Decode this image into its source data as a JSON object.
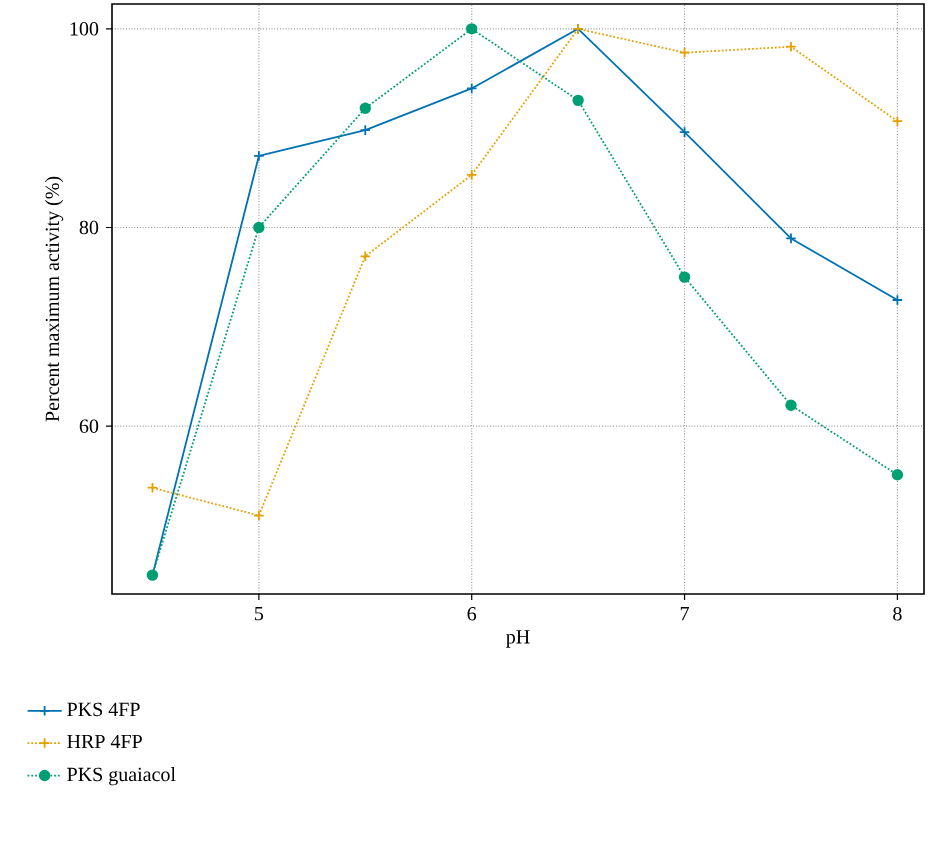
{
  "chart_data": {
    "type": "line",
    "xlabel": "pH",
    "ylabel": "Percent maximum activity (%)",
    "x": [
      4.5,
      5,
      5.5,
      6,
      6.5,
      7,
      7.5,
      8
    ],
    "series": [
      {
        "name": "PKS 4FP",
        "color": "#0072b2",
        "values": [
          45,
          87.2,
          89.8,
          94.0,
          100,
          89.6,
          78.9,
          72.7
        ],
        "marker": "cross",
        "line_style": "solid"
      },
      {
        "name": "HRP 4FP",
        "color": "#e69f00",
        "values": [
          53.8,
          51.0,
          77.1,
          85.3,
          100,
          97.6,
          98.2,
          90.7
        ],
        "marker": "cross",
        "line_style": "dotted"
      },
      {
        "name": "PKS guaiacol",
        "color": "#009e73",
        "values": [
          45,
          80,
          92.0,
          100,
          92.8,
          75.0,
          62.1,
          55.1
        ],
        "marker": "circle",
        "line_style": "dotted"
      }
    ],
    "xlim": [
      4.31,
      8.125
    ],
    "ylim": [
      43.1,
      102.5
    ],
    "xticks": [
      5,
      6,
      7,
      8
    ],
    "yticks": [
      60,
      80,
      100
    ],
    "grid": true,
    "legend": "bottom left"
  }
}
